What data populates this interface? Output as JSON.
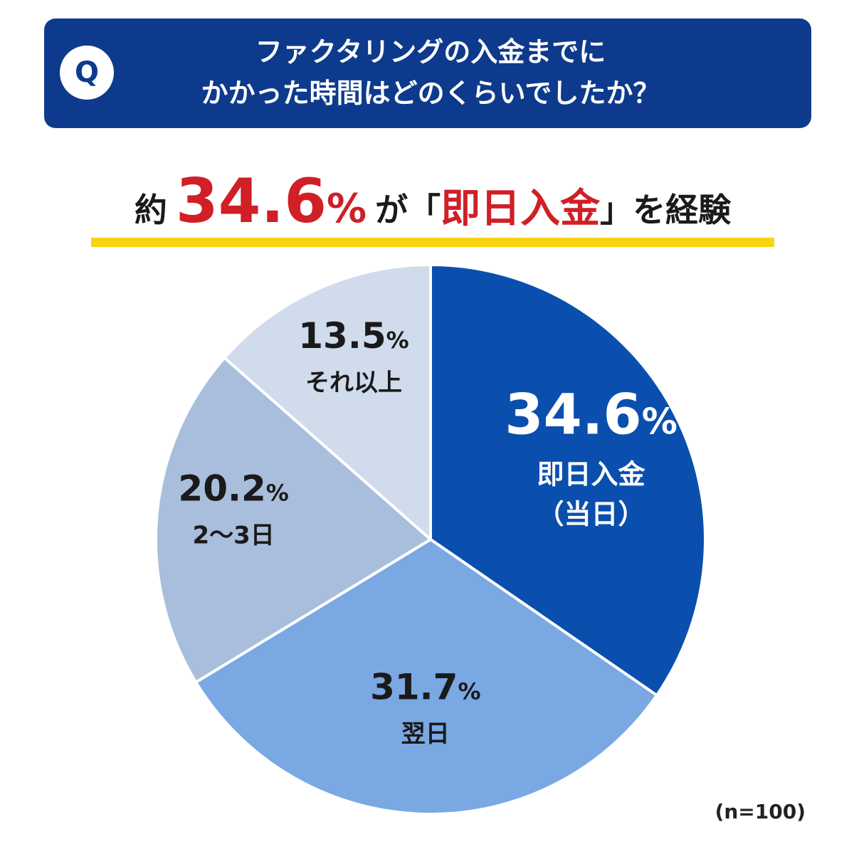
{
  "question": {
    "badge": "Q",
    "line1": "ファクタリングの入金までに",
    "line2": "かかった時間はどのくらいでしたか？"
  },
  "headline": {
    "prefix": "約",
    "value": "34.6",
    "percent": "%",
    "middle": "が",
    "bracket_open": "「",
    "quote": "即日入金",
    "bracket_close": "」",
    "suffix": "を経験"
  },
  "note": "(n=100)",
  "chart_data": {
    "type": "pie",
    "start": "12 o'clock, clockwise",
    "slices": [
      {
        "label": "即日入金",
        "sublabel": "（当日）",
        "value": 34.6,
        "color": "#0a4fae",
        "text_color": "#ffffff"
      },
      {
        "label": "翌日",
        "value": 31.7,
        "color": "#7aa8e3",
        "text_color": "#1a1a1a"
      },
      {
        "label": "2〜3日",
        "value": 20.2,
        "color": "#a9bedd",
        "text_color": "#1a1a1a"
      },
      {
        "label": "それ以上",
        "value": 13.5,
        "color": "#d0dbeb",
        "text_color": "#1a1a1a"
      }
    ]
  }
}
